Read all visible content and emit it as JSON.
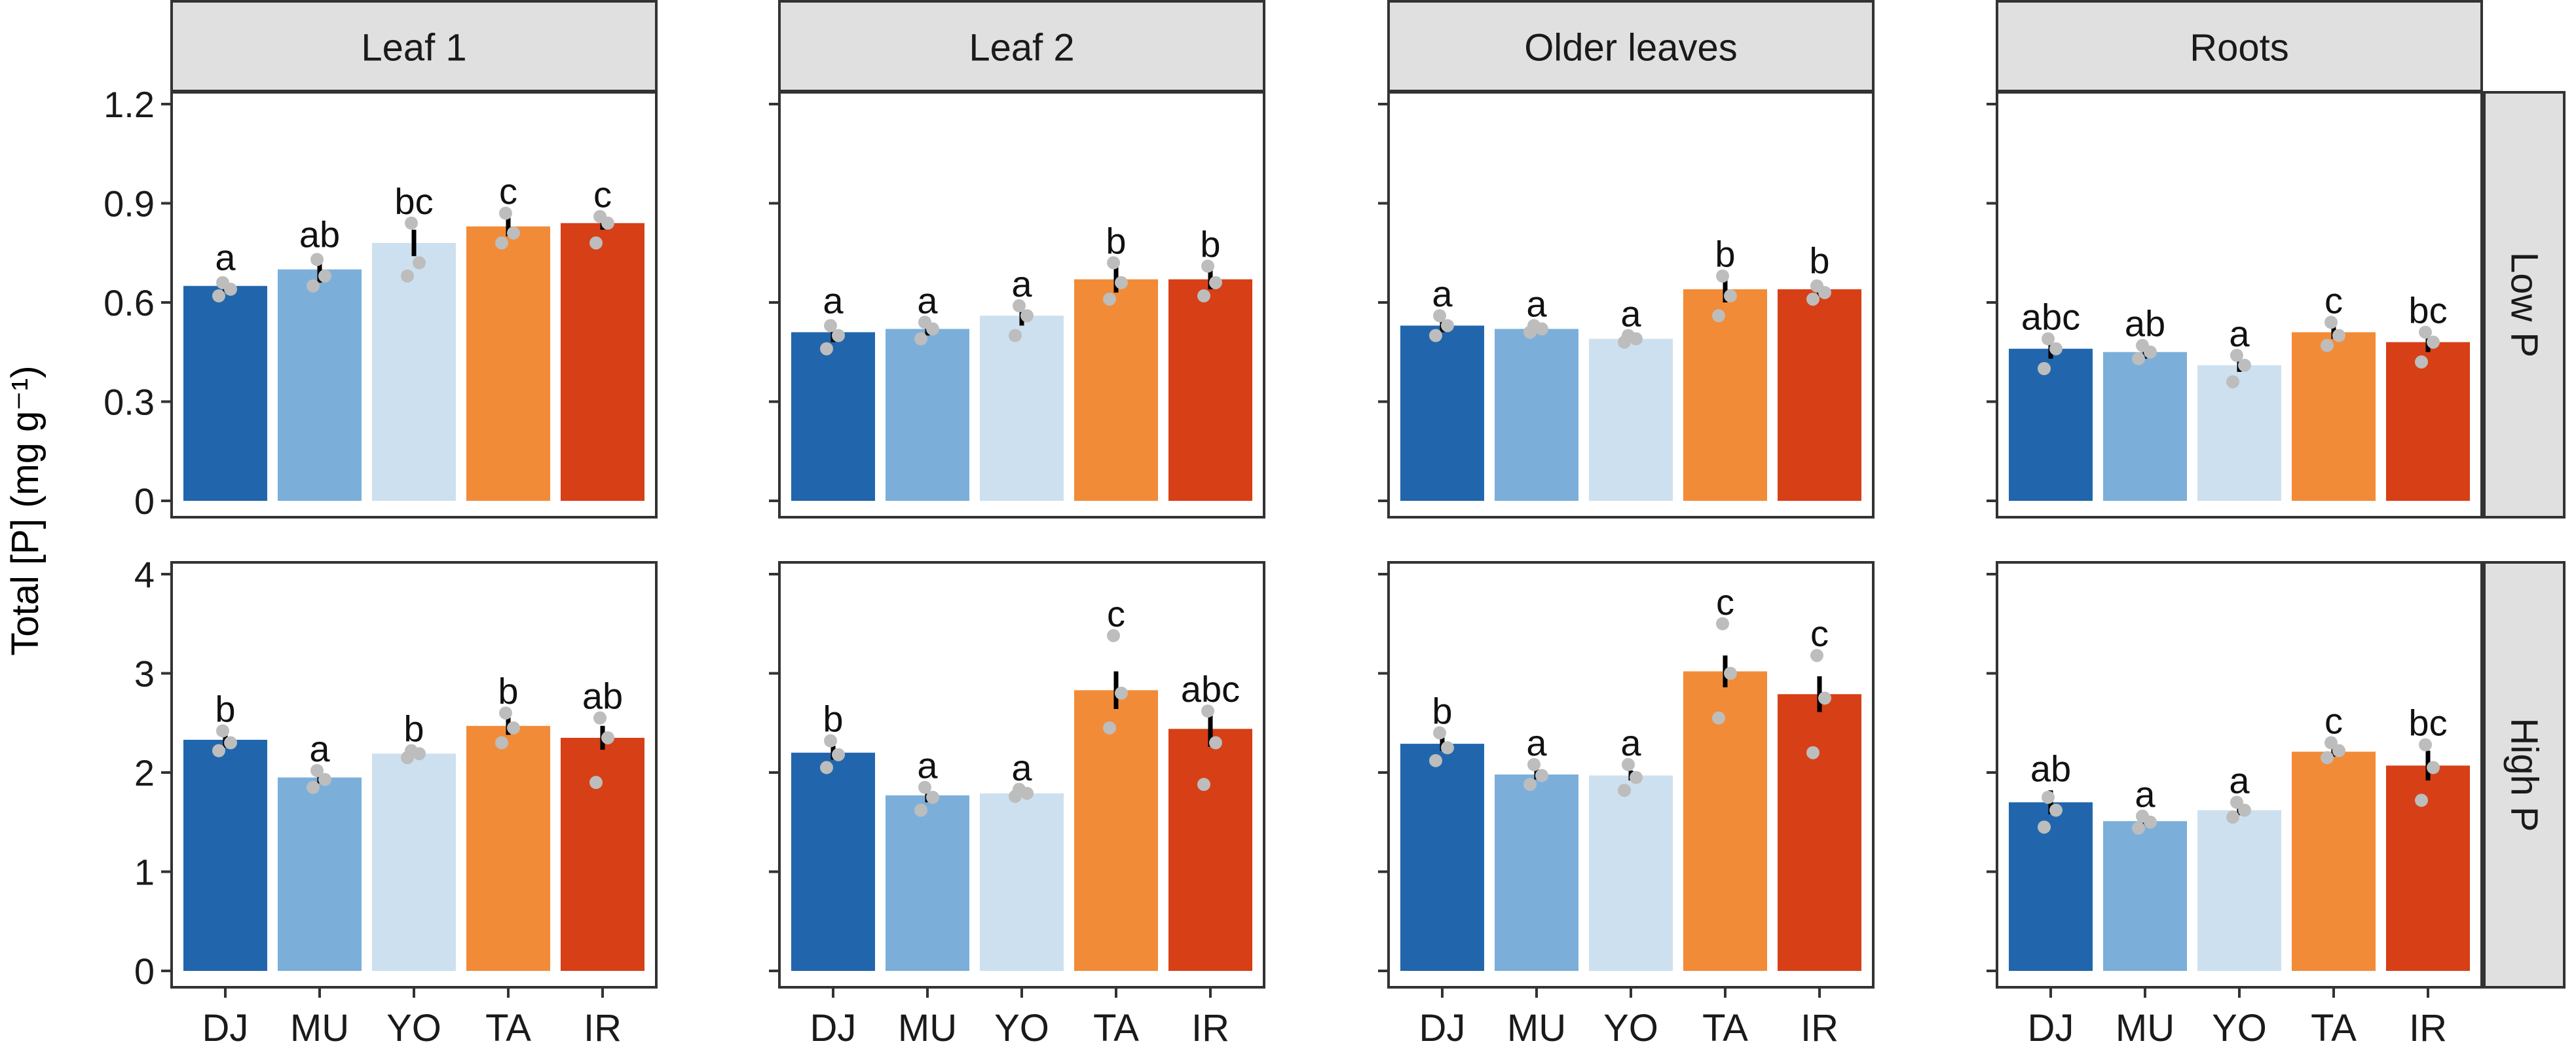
{
  "chart_data": {
    "type": "bar",
    "ylabel": "Total [P] (mg g⁻¹)",
    "categories": [
      "DJ",
      "MU",
      "YO",
      "TA",
      "IR"
    ],
    "colors": [
      "#2166ac",
      "#7bafd9",
      "#cde0ef",
      "#f28b37",
      "#d73f16"
    ],
    "point_color": "#bdbdbd",
    "facet_strip_color": "#e0e0e0",
    "facet_columns": [
      "Leaf 1",
      "Leaf 2",
      "Older leaves",
      "Roots"
    ],
    "facet_rows": [
      {
        "label": "Low P",
        "ylim": [
          0,
          1.2
        ],
        "yticks": [
          0,
          0.3,
          0.6,
          0.9,
          1.2
        ],
        "ytick_labels": [
          "0",
          "0.3",
          "0.6",
          "0.9",
          "1.2"
        ]
      },
      {
        "label": "High P",
        "ylim": [
          0,
          4
        ],
        "yticks": [
          0,
          1,
          2,
          3,
          4
        ],
        "ytick_labels": [
          "0",
          "1",
          "2",
          "3",
          "4"
        ]
      }
    ],
    "panels": [
      {
        "row": "Low P",
        "column": "Leaf 1",
        "values": [
          0.65,
          0.7,
          0.78,
          0.83,
          0.84
        ],
        "errors": [
          0.02,
          0.04,
          0.04,
          0.03,
          0.02
        ],
        "letters": [
          "a",
          "ab",
          "bc",
          "c",
          "c"
        ],
        "points": [
          [
            0.62,
            0.64,
            0.66
          ],
          [
            0.65,
            0.68,
            0.73
          ],
          [
            0.68,
            0.72,
            0.84
          ],
          [
            0.78,
            0.81,
            0.87
          ],
          [
            0.78,
            0.84,
            0.86
          ]
        ]
      },
      {
        "row": "Low P",
        "column": "Leaf 2",
        "values": [
          0.51,
          0.52,
          0.56,
          0.67,
          0.67
        ],
        "errors": [
          0.03,
          0.02,
          0.03,
          0.04,
          0.03
        ],
        "letters": [
          "a",
          "a",
          "a",
          "b",
          "b"
        ],
        "points": [
          [
            0.46,
            0.5,
            0.53
          ],
          [
            0.49,
            0.52,
            0.54
          ],
          [
            0.5,
            0.56,
            0.59
          ],
          [
            0.61,
            0.66,
            0.72
          ],
          [
            0.62,
            0.66,
            0.71
          ]
        ]
      },
      {
        "row": "Low P",
        "column": "Older leaves",
        "values": [
          0.53,
          0.52,
          0.49,
          0.64,
          0.64
        ],
        "errors": [
          0.02,
          0.01,
          0.01,
          0.04,
          0.02
        ],
        "letters": [
          "a",
          "a",
          "a",
          "b",
          "b"
        ],
        "points": [
          [
            0.5,
            0.53,
            0.56
          ],
          [
            0.51,
            0.52,
            0.53
          ],
          [
            0.48,
            0.49,
            0.5
          ],
          [
            0.56,
            0.62,
            0.68
          ],
          [
            0.61,
            0.63,
            0.65
          ]
        ]
      },
      {
        "row": "Low P",
        "column": "Roots",
        "values": [
          0.46,
          0.45,
          0.41,
          0.51,
          0.48
        ],
        "errors": [
          0.03,
          0.02,
          0.02,
          0.02,
          0.03
        ],
        "letters": [
          "abc",
          "ab",
          "a",
          "c",
          "bc"
        ],
        "points": [
          [
            0.4,
            0.46,
            0.49
          ],
          [
            0.43,
            0.45,
            0.47
          ],
          [
            0.36,
            0.41,
            0.44
          ],
          [
            0.47,
            0.5,
            0.54
          ],
          [
            0.42,
            0.48,
            0.51
          ]
        ]
      },
      {
        "row": "High P",
        "column": "Leaf 1",
        "values": [
          2.33,
          1.95,
          2.19,
          2.47,
          2.35
        ],
        "errors": [
          0.08,
          0.06,
          0.03,
          0.09,
          0.12
        ],
        "letters": [
          "b",
          "a",
          "b",
          "b",
          "ab"
        ],
        "points": [
          [
            2.22,
            2.3,
            2.42
          ],
          [
            1.85,
            1.93,
            2.02
          ],
          [
            2.15,
            2.19,
            2.22
          ],
          [
            2.3,
            2.45,
            2.6
          ],
          [
            1.9,
            2.35,
            2.55
          ]
        ]
      },
      {
        "row": "High P",
        "column": "Leaf 2",
        "values": [
          2.2,
          1.77,
          1.79,
          2.83,
          2.44
        ],
        "errors": [
          0.07,
          0.07,
          0.03,
          0.19,
          0.18
        ],
        "letters": [
          "b",
          "a",
          "a",
          "c",
          "abc"
        ],
        "points": [
          [
            2.05,
            2.18,
            2.32
          ],
          [
            1.62,
            1.75,
            1.85
          ],
          [
            1.76,
            1.79,
            1.83
          ],
          [
            2.45,
            2.8,
            3.38
          ],
          [
            1.88,
            2.3,
            2.62
          ]
        ]
      },
      {
        "row": "High P",
        "column": "Older leaves",
        "values": [
          2.29,
          1.98,
          1.97,
          3.02,
          2.79
        ],
        "errors": [
          0.07,
          0.05,
          0.05,
          0.16,
          0.18
        ],
        "letters": [
          "b",
          "a",
          "a",
          "c",
          "c"
        ],
        "points": [
          [
            2.12,
            2.25,
            2.4
          ],
          [
            1.88,
            1.97,
            2.08
          ],
          [
            1.82,
            1.95,
            2.08
          ],
          [
            2.55,
            3.0,
            3.5
          ],
          [
            2.2,
            2.75,
            3.18
          ]
        ]
      },
      {
        "row": "High P",
        "column": "Roots",
        "values": [
          1.7,
          1.51,
          1.62,
          2.21,
          2.07
        ],
        "errors": [
          0.12,
          0.05,
          0.05,
          0.05,
          0.15
        ],
        "letters": [
          "ab",
          "a",
          "a",
          "c",
          "bc"
        ],
        "points": [
          [
            1.45,
            1.62,
            1.75
          ],
          [
            1.44,
            1.5,
            1.56
          ],
          [
            1.55,
            1.62,
            1.7
          ],
          [
            2.15,
            2.22,
            2.3
          ],
          [
            1.72,
            2.05,
            2.28
          ]
        ]
      }
    ]
  }
}
